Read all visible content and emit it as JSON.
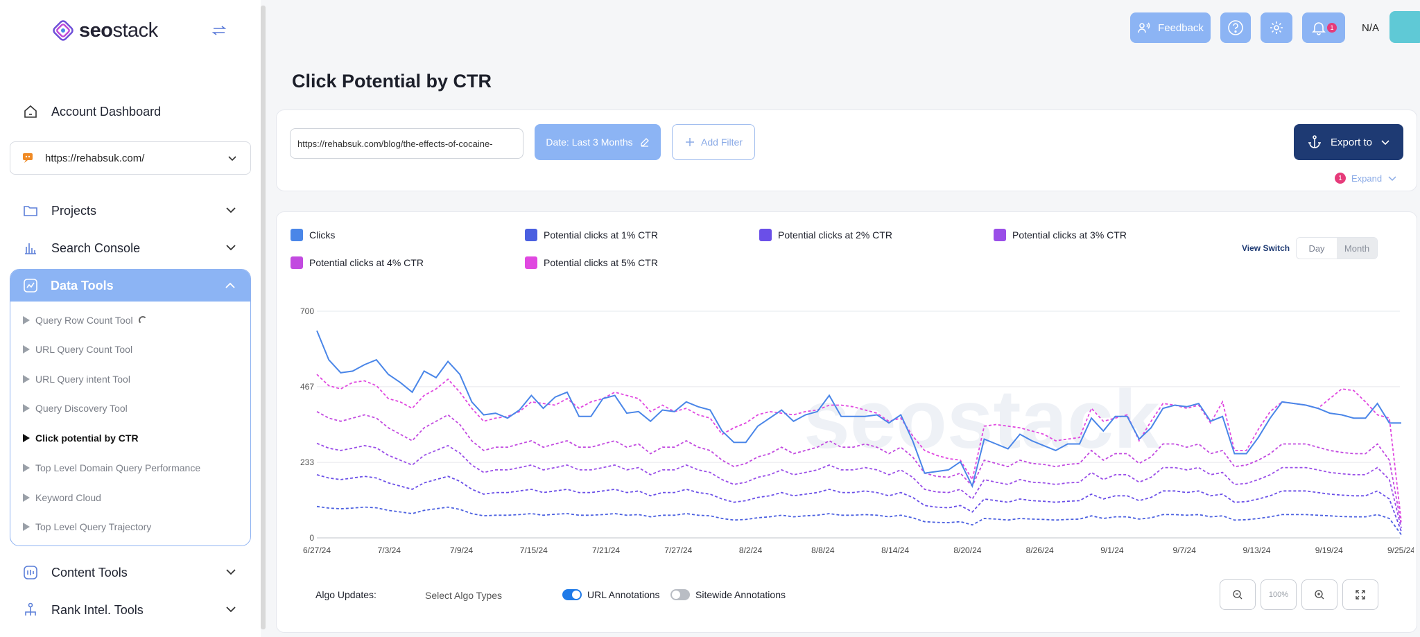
{
  "brand": {
    "logo_bold": "seo",
    "logo_light": "stack"
  },
  "sidebar": {
    "account_dashboard": "Account Dashboard",
    "site_selector": "https://rehabsuk.com/",
    "projects": "Projects",
    "search_console": "Search Console",
    "data_tools": "Data Tools",
    "tools": [
      {
        "label": "Query Row Count Tool",
        "active": false
      },
      {
        "label": "URL Query Count Tool",
        "active": false
      },
      {
        "label": "URL Query intent Tool",
        "active": false
      },
      {
        "label": "Query Discovery Tool",
        "active": false
      },
      {
        "label": "Click potential by CTR",
        "active": true
      },
      {
        "label": "Top Level Domain Query Performance",
        "active": false
      },
      {
        "label": "Keyword Cloud",
        "active": false
      },
      {
        "label": "Top Level Query Trajectory",
        "active": false
      }
    ],
    "content_tools": "Content Tools",
    "rank_intel_tools": "Rank Intel. Tools"
  },
  "topbar": {
    "feedback": "Feedback",
    "notification_count": "1",
    "user": "N/A"
  },
  "page": {
    "title": "Click Potential by CTR"
  },
  "filters": {
    "url_value": "https://rehabsuk.com/blog/the-effects-of-cocaine-",
    "date_label": "Date: Last 3 Months",
    "add_filter": "Add Filter",
    "export": "Export to",
    "expand": "Expand",
    "expand_count": "1"
  },
  "view_switch": {
    "label": "View Switch",
    "day": "Day",
    "month": "Month",
    "selected": "Month"
  },
  "footer": {
    "algo_updates": "Algo Updates:",
    "algo_select": "Select Algo Types",
    "url_annotations": "URL Annotations",
    "sitewide_annotations": "Sitewide Annotations",
    "zoom_level": "100%"
  },
  "colors": {
    "clicks": "#4a86e8",
    "ctr1": "#4a5fe0",
    "ctr2": "#6a4fe8",
    "ctr3": "#9a4ee8",
    "ctr4": "#c24ae0",
    "ctr5": "#e048e0"
  },
  "chart_data": {
    "type": "line",
    "ylim": [
      0,
      700
    ],
    "y_ticks": [
      "0",
      "233",
      "467",
      "700"
    ],
    "x_ticks": [
      "6/27/24",
      "7/3/24",
      "7/9/24",
      "7/15/24",
      "7/21/24",
      "7/27/24",
      "8/2/24",
      "8/8/24",
      "8/14/24",
      "8/20/24",
      "8/26/24",
      "9/1/24",
      "9/7/24",
      "9/13/24",
      "9/19/24",
      "9/25/24"
    ],
    "series": [
      {
        "name": "Clicks",
        "style": "solid",
        "values": [
          640,
          550,
          510,
          515,
          535,
          550,
          505,
          480,
          450,
          515,
          495,
          545,
          505,
          420,
          380,
          385,
          370,
          395,
          440,
          400,
          435,
          450,
          375,
          375,
          430,
          440,
          385,
          390,
          360,
          395,
          390,
          420,
          405,
          395,
          330,
          295,
          295,
          345,
          370,
          395,
          360,
          380,
          390,
          440,
          375,
          375,
          375,
          380,
          355,
          380,
          300,
          200,
          205,
          210,
          235,
          160,
          305,
          290,
          275,
          320,
          300,
          285,
          270,
          290,
          290,
          370,
          330,
          375,
          375,
          305,
          340,
          400,
          410,
          405,
          415,
          360,
          375,
          260,
          260,
          310,
          370,
          420,
          415,
          410,
          400,
          385,
          380,
          370,
          370,
          415,
          355,
          355
        ]
      },
      {
        "name": "Potential clicks at 1% CTR",
        "style": "dashed",
        "values": [
          97,
          92,
          90,
          92,
          95,
          93,
          85,
          80,
          75,
          85,
          90,
          95,
          88,
          75,
          68,
          70,
          70,
          72,
          75,
          70,
          73,
          75,
          70,
          70,
          72,
          75,
          70,
          72,
          65,
          70,
          70,
          75,
          70,
          68,
          60,
          55,
          57,
          62,
          65,
          70,
          65,
          68,
          70,
          75,
          70,
          70,
          72,
          70,
          65,
          70,
          62,
          50,
          48,
          47,
          50,
          40,
          60,
          58,
          55,
          60,
          58,
          57,
          55,
          57,
          58,
          68,
          60,
          65,
          65,
          58,
          62,
          72,
          72,
          70,
          72,
          65,
          68,
          55,
          56,
          60,
          65,
          72,
          72,
          72,
          70,
          68,
          66,
          65,
          65,
          72,
          60,
          10
        ]
      },
      {
        "name": "Potential clicks at 2% CTR",
        "style": "dashed",
        "values": [
          195,
          185,
          180,
          185,
          190,
          185,
          170,
          160,
          150,
          170,
          180,
          190,
          175,
          150,
          135,
          140,
          140,
          145,
          150,
          140,
          145,
          150,
          140,
          140,
          145,
          150,
          140,
          145,
          130,
          140,
          140,
          150,
          140,
          135,
          120,
          110,
          115,
          125,
          130,
          140,
          130,
          135,
          140,
          150,
          140,
          140,
          145,
          140,
          130,
          140,
          125,
          100,
          95,
          93,
          100,
          80,
          120,
          115,
          110,
          120,
          115,
          113,
          110,
          113,
          115,
          135,
          120,
          130,
          130,
          115,
          125,
          145,
          145,
          140,
          145,
          130,
          135,
          110,
          112,
          120,
          130,
          145,
          145,
          145,
          140,
          135,
          132,
          130,
          130,
          145,
          120,
          20
        ]
      },
      {
        "name": "Potential clicks at 3% CTR",
        "style": "dashed",
        "values": [
          292,
          277,
          270,
          277,
          285,
          278,
          255,
          240,
          225,
          255,
          270,
          285,
          262,
          225,
          202,
          210,
          210,
          217,
          225,
          210,
          217,
          225,
          210,
          210,
          217,
          225,
          210,
          217,
          195,
          210,
          210,
          225,
          210,
          202,
          180,
          165,
          172,
          187,
          195,
          210,
          195,
          202,
          210,
          225,
          210,
          210,
          217,
          210,
          195,
          210,
          187,
          150,
          142,
          140,
          150,
          120,
          180,
          172,
          165,
          180,
          172,
          170,
          165,
          170,
          172,
          202,
          180,
          195,
          195,
          172,
          187,
          217,
          217,
          210,
          217,
          195,
          202,
          165,
          168,
          180,
          195,
          217,
          217,
          217,
          210,
          202,
          198,
          195,
          195,
          217,
          180,
          30
        ]
      },
      {
        "name": "Potential clicks at 4% CTR",
        "style": "dashed",
        "values": [
          390,
          370,
          360,
          370,
          380,
          370,
          340,
          320,
          300,
          340,
          360,
          380,
          350,
          300,
          270,
          280,
          280,
          290,
          300,
          280,
          290,
          300,
          280,
          280,
          290,
          300,
          280,
          290,
          260,
          280,
          280,
          300,
          280,
          270,
          240,
          220,
          230,
          250,
          260,
          280,
          260,
          270,
          280,
          300,
          280,
          280,
          290,
          280,
          260,
          280,
          250,
          200,
          190,
          187,
          200,
          160,
          240,
          230,
          220,
          240,
          230,
          227,
          220,
          227,
          230,
          270,
          240,
          260,
          260,
          230,
          250,
          290,
          290,
          280,
          290,
          260,
          270,
          220,
          225,
          240,
          260,
          290,
          290,
          290,
          280,
          270,
          264,
          260,
          260,
          290,
          240,
          40
        ]
      },
      {
        "name": "Potential clicks at 5% CTR",
        "style": "dashed",
        "values": [
          505,
          470,
          460,
          480,
          485,
          470,
          430,
          420,
          400,
          440,
          460,
          490,
          450,
          400,
          360,
          370,
          375,
          390,
          420,
          415,
          410,
          430,
          400,
          420,
          430,
          450,
          440,
          430,
          390,
          410,
          390,
          400,
          380,
          370,
          320,
          340,
          355,
          380,
          390,
          385,
          380,
          390,
          395,
          410,
          410,
          405,
          395,
          385,
          360,
          370,
          315,
          270,
          255,
          245,
          240,
          180,
          345,
          350,
          345,
          340,
          330,
          320,
          300,
          305,
          310,
          400,
          360,
          370,
          380,
          300,
          360,
          415,
          410,
          400,
          410,
          355,
          420,
          270,
          270,
          335,
          390,
          420,
          415,
          410,
          400,
          430,
          460,
          455,
          420,
          380,
          370,
          50
        ]
      }
    ]
  }
}
